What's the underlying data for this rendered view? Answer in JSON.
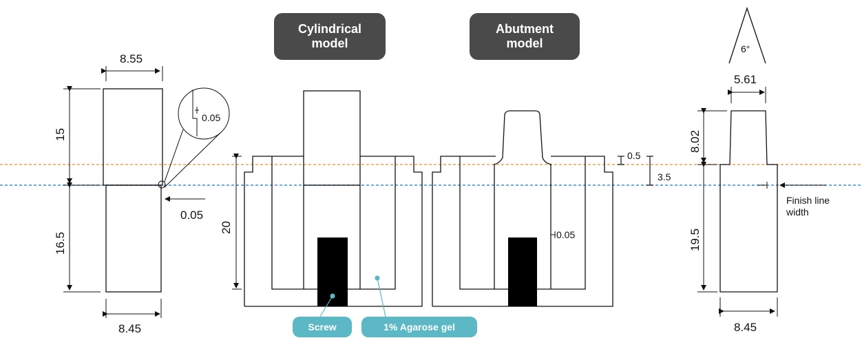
{
  "titles": {
    "cylindrical": "Cylindrical\nmodel",
    "abutment": "Abutment\nmodel"
  },
  "tags": {
    "screw": "Screw",
    "agarose": "1% Agarose gel"
  },
  "dims": {
    "cyl_top_width": "8.55",
    "cyl_upper_height": "15",
    "cyl_lower_height": "16.5",
    "cyl_bottom_width": "8.45",
    "detail_gap": "0.05",
    "cyl_step_gap": "0.05",
    "holder_height": "20",
    "socket_gap": "0.05",
    "rim_step": "0.5",
    "finish_depth": "3.5",
    "taper_angle": "6°",
    "abut_top_width": "5.61",
    "abut_upper_height": "8.02",
    "abut_lower_height": "19.5",
    "abut_bottom_width": "8.45",
    "finish_line_label": "Finish line\nwidth"
  },
  "colors": {
    "orange_line": "#f0a050",
    "blue_line": "#3a8fd0",
    "pill_bg": "#4a4a4a",
    "tag_bg": "#5bb8c4"
  }
}
